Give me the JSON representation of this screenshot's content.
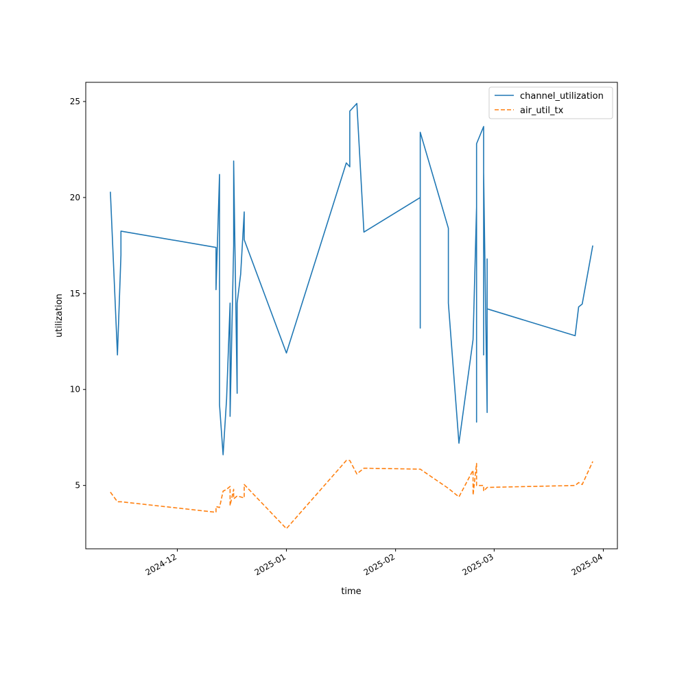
{
  "chart_data": {
    "type": "line",
    "title": "",
    "xlabel": "time",
    "ylabel": "utilization",
    "x_tick_labels": [
      "2024-12",
      "2025-01",
      "2025-02",
      "2025-03",
      "2025-04"
    ],
    "x_tick_dates": [
      "2024-12-01",
      "2025-01-01",
      "2025-02-01",
      "2025-03-01",
      "2025-04-01"
    ],
    "xlim": [
      "2024-11-05",
      "2025-04-05"
    ],
    "y_ticks": [
      5,
      10,
      15,
      20,
      25
    ],
    "ylim": [
      1.7,
      26.0
    ],
    "grid": false,
    "legend_position": "top-right",
    "series": [
      {
        "name": "channel_utilization",
        "color": "#1f77b4",
        "style": "solid",
        "points": [
          [
            "2024-11-12",
            20.3
          ],
          [
            "2024-11-14",
            11.8
          ],
          [
            "2024-11-15",
            17.0
          ],
          [
            "2024-11-15",
            18.25
          ],
          [
            "2024-12-12",
            17.4
          ],
          [
            "2024-12-12",
            15.2
          ],
          [
            "2024-12-12",
            17.3
          ],
          [
            "2024-12-12",
            15.2
          ],
          [
            "2024-12-13",
            21.2
          ],
          [
            "2024-12-13",
            9.2
          ],
          [
            "2024-12-14",
            6.6
          ],
          [
            "2024-12-15",
            9.5
          ],
          [
            "2024-12-16",
            14.5
          ],
          [
            "2024-12-16",
            8.6
          ],
          [
            "2024-12-17",
            17.5
          ],
          [
            "2024-12-17",
            21.9
          ],
          [
            "2024-12-18",
            9.8
          ],
          [
            "2024-12-18",
            14.5
          ],
          [
            "2024-12-19",
            16.0
          ],
          [
            "2024-12-20",
            19.25
          ],
          [
            "2024-12-20",
            17.8
          ],
          [
            "2025-01-01",
            11.9
          ],
          [
            "2025-01-18",
            21.8
          ],
          [
            "2025-01-19",
            21.6
          ],
          [
            "2025-01-19",
            24.5
          ],
          [
            "2025-01-21",
            24.9
          ],
          [
            "2025-01-23",
            18.2
          ],
          [
            "2025-02-08",
            20.0
          ],
          [
            "2025-02-08",
            13.2
          ],
          [
            "2025-02-08",
            23.4
          ],
          [
            "2025-02-16",
            18.4
          ],
          [
            "2025-02-16",
            14.5
          ],
          [
            "2025-02-19",
            7.2
          ],
          [
            "2025-02-23",
            12.6
          ],
          [
            "2025-02-24",
            19.5
          ],
          [
            "2025-02-24",
            8.3
          ],
          [
            "2025-02-24",
            22.8
          ],
          [
            "2025-02-26",
            23.7
          ],
          [
            "2025-02-26",
            11.8
          ],
          [
            "2025-02-26",
            21.3
          ],
          [
            "2025-02-27",
            8.8
          ],
          [
            "2025-02-27",
            16.8
          ],
          [
            "2025-02-27",
            14.2
          ],
          [
            "2025-03-24",
            12.8
          ],
          [
            "2025-03-25",
            14.3
          ],
          [
            "2025-03-26",
            14.45
          ],
          [
            "2025-03-29",
            17.5
          ]
        ]
      },
      {
        "name": "air_util_tx",
        "color": "#ff7f0e",
        "style": "dashed",
        "points": [
          [
            "2024-11-12",
            4.65
          ],
          [
            "2024-11-14",
            4.15
          ],
          [
            "2024-11-15",
            4.15
          ],
          [
            "2024-12-12",
            3.6
          ],
          [
            "2024-12-12",
            3.9
          ],
          [
            "2024-12-13",
            3.85
          ],
          [
            "2024-12-14",
            4.7
          ],
          [
            "2024-12-15",
            4.8
          ],
          [
            "2024-12-16",
            4.95
          ],
          [
            "2024-12-16",
            3.95
          ],
          [
            "2024-12-17",
            4.8
          ],
          [
            "2024-12-17",
            4.3
          ],
          [
            "2024-12-18",
            4.45
          ],
          [
            "2024-12-19",
            4.4
          ],
          [
            "2024-12-20",
            4.35
          ],
          [
            "2024-12-20",
            5.05
          ],
          [
            "2025-01-01",
            2.75
          ],
          [
            "2025-01-18",
            6.3
          ],
          [
            "2025-01-19",
            6.3
          ],
          [
            "2025-01-21",
            5.6
          ],
          [
            "2025-01-23",
            5.9
          ],
          [
            "2025-02-08",
            5.85
          ],
          [
            "2025-02-16",
            4.85
          ],
          [
            "2025-02-19",
            4.4
          ],
          [
            "2025-02-23",
            5.8
          ],
          [
            "2025-02-23",
            4.5
          ],
          [
            "2025-02-24",
            6.15
          ],
          [
            "2025-02-24",
            5.0
          ],
          [
            "2025-02-26",
            5.0
          ],
          [
            "2025-02-26",
            4.7
          ],
          [
            "2025-02-27",
            4.9
          ],
          [
            "2025-03-24",
            5.0
          ],
          [
            "2025-03-25",
            5.15
          ],
          [
            "2025-03-26",
            5.05
          ],
          [
            "2025-03-29",
            6.25
          ]
        ]
      }
    ]
  }
}
